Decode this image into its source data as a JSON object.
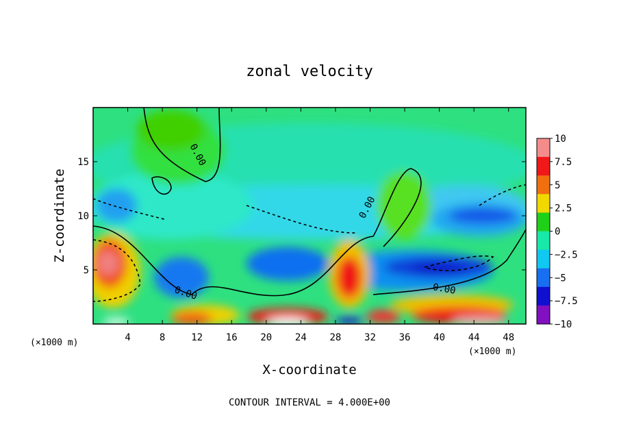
{
  "chart_data": {
    "type": "heatmap",
    "title": "zonal velocity",
    "xlabel": "X-coordinate",
    "ylabel": "Z-coordinate",
    "x_unit": "(×1000 m)",
    "y_unit": "(×1000 m)",
    "xlim": [
      0,
      50
    ],
    "ylim": [
      0,
      20
    ],
    "x_ticks": [
      "4",
      "8",
      "12",
      "16",
      "20",
      "24",
      "28",
      "32",
      "36",
      "40",
      "44",
      "48"
    ],
    "y_ticks": [
      "5",
      "10",
      "15"
    ],
    "colorbar": {
      "min": -10,
      "max": 10,
      "labels": [
        "10",
        "7.5",
        "5",
        "2.5",
        "0",
        "-2.5",
        "-5",
        "-7.5",
        "-10"
      ],
      "colors": [
        "#f48c8c",
        "#f01818",
        "#f07010",
        "#f0d800",
        "#20d018",
        "#18e8a8",
        "#10c8f0",
        "#1870f0",
        "#1010d0",
        "#8010c0"
      ]
    },
    "zero_contour_label": "0.00",
    "footer": "CONTOUR INTERVAL = 4.000E+00"
  }
}
